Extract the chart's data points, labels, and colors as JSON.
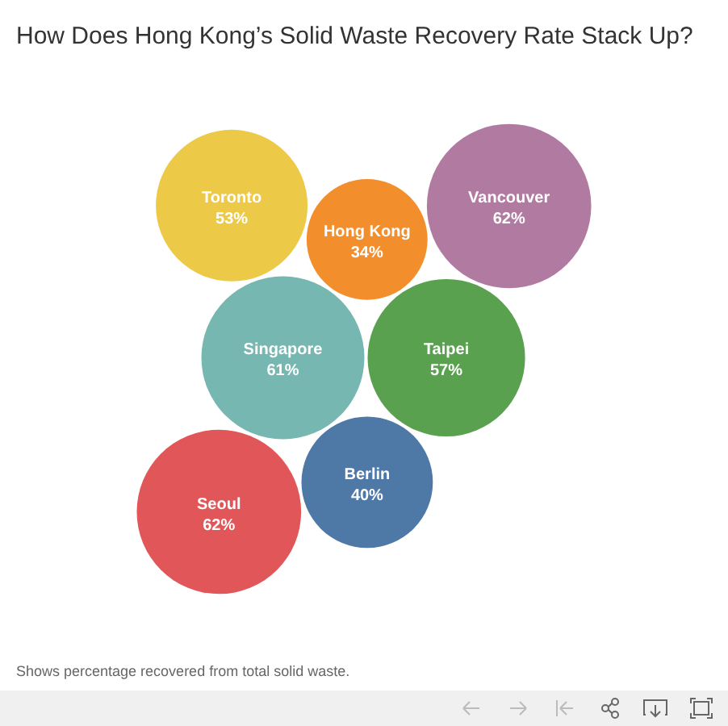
{
  "chart_data": {
    "type": "other",
    "title": "How Does Hong Kong’s Solid Waste Recovery Rate Stack Up?",
    "categories": [
      "Singapore",
      "Taipei",
      "Berlin",
      "Hong Kong",
      "Toronto",
      "Seoul",
      "Vancouver"
    ],
    "values": [
      61,
      57,
      40,
      34,
      53,
      62,
      62
    ],
    "value_labels": [
      "61%",
      "57%",
      "40%",
      "34%",
      "53%",
      "62%",
      "62%"
    ],
    "colors": [
      "#76b7b2",
      "#59a14f",
      "#4e79a7",
      "#f28e2b",
      "#edc948",
      "#e15759",
      "#b07aa1"
    ],
    "annotations": [
      "Shows percentage recovered from total solid waste."
    ]
  }
}
